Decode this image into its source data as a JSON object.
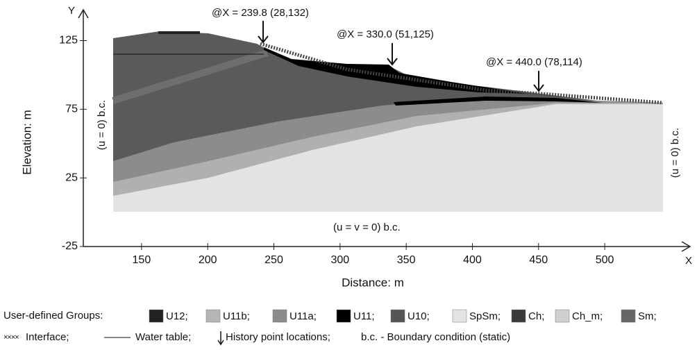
{
  "chart_data": {
    "type": "section",
    "y_axis_letter": "Y",
    "x_axis_letter": "X",
    "x_label": "Distance: m",
    "y_label": "Elevation: m",
    "xlim": [
      106,
      565
    ],
    "ylim": [
      -25,
      147
    ],
    "xticks": [
      150,
      200,
      250,
      300,
      350,
      400,
      450,
      500
    ],
    "yticks": [
      -25,
      25,
      75,
      125
    ],
    "annotations": [
      "@X = 239.8 (28,132)",
      "@X = 330.0 (51,125)",
      "@X = 440.0 (78,114)",
      "(u = 0) b.c.",
      "(u = 0) b.c.",
      "(u = v = 0) b.c."
    ],
    "legend_title": "User-defined Groups:",
    "groups": [
      {
        "name": "U12;",
        "color": "#222222"
      },
      {
        "name": "U11b;",
        "color": "#b5b5b5"
      },
      {
        "name": "U11a;",
        "color": "#8c8c8c"
      },
      {
        "name": "U11;",
        "color": "#000000"
      },
      {
        "name": "U10;",
        "color": "#555555"
      },
      {
        "name": "SpSm;",
        "color": "#e3e3e3"
      },
      {
        "name": "Ch;",
        "color": "#3a3a3a"
      },
      {
        "name": "Ch_m;",
        "color": "#cfcfcf"
      },
      {
        "name": "Sm;",
        "color": "#666666"
      }
    ],
    "symbols": [
      "Interface;",
      "Water table;",
      "History point locations;",
      "b.c. - Boundary condition (static)"
    ]
  }
}
